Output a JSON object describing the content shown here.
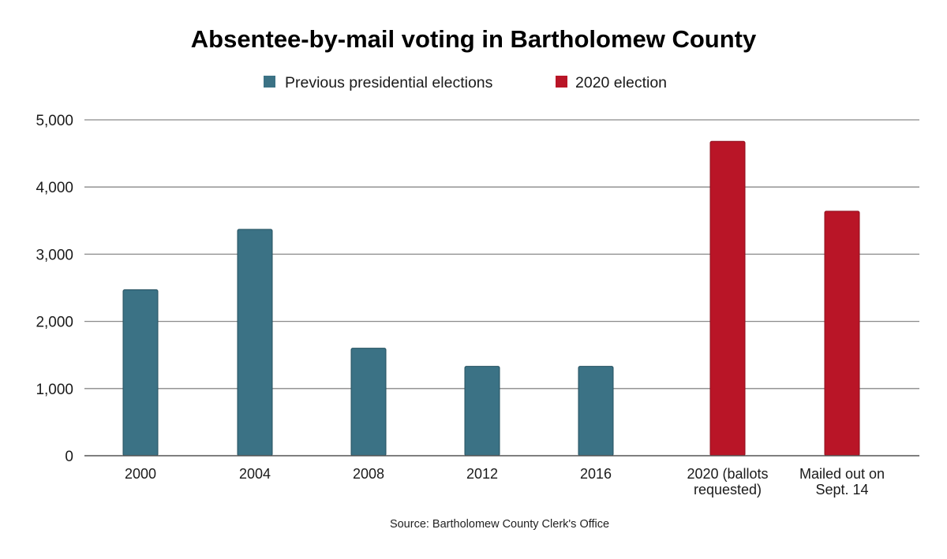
{
  "chart_data": {
    "type": "bar",
    "title": "Absentee-by-mail voting in Bartholomew County",
    "xlabel": "",
    "ylabel": "",
    "ylim": [
      0,
      5000
    ],
    "yticks": [
      0,
      1000,
      2000,
      3000,
      4000,
      5000
    ],
    "ytick_labels": [
      "0",
      "1,000",
      "2,000",
      "3,000",
      "4,000",
      "5,000"
    ],
    "grid": true,
    "legend_position": "top-center",
    "categories": [
      [
        "2000"
      ],
      [
        "2004"
      ],
      [
        "2008"
      ],
      [
        "2012"
      ],
      [
        "2016"
      ],
      [
        "2020 (ballots",
        "requested)"
      ],
      [
        "Mailed out on",
        "Sept. 14"
      ]
    ],
    "series": [
      {
        "name": "Previous presidential elections",
        "color": "#3b7285",
        "values": [
          2470,
          3370,
          1600,
          1330,
          1330,
          null,
          null
        ]
      },
      {
        "name": "2020 election",
        "color": "#b91527",
        "values": [
          null,
          null,
          null,
          null,
          null,
          4680,
          3640
        ]
      }
    ],
    "source": "Source: Bartholomew County Clerk's Office"
  }
}
